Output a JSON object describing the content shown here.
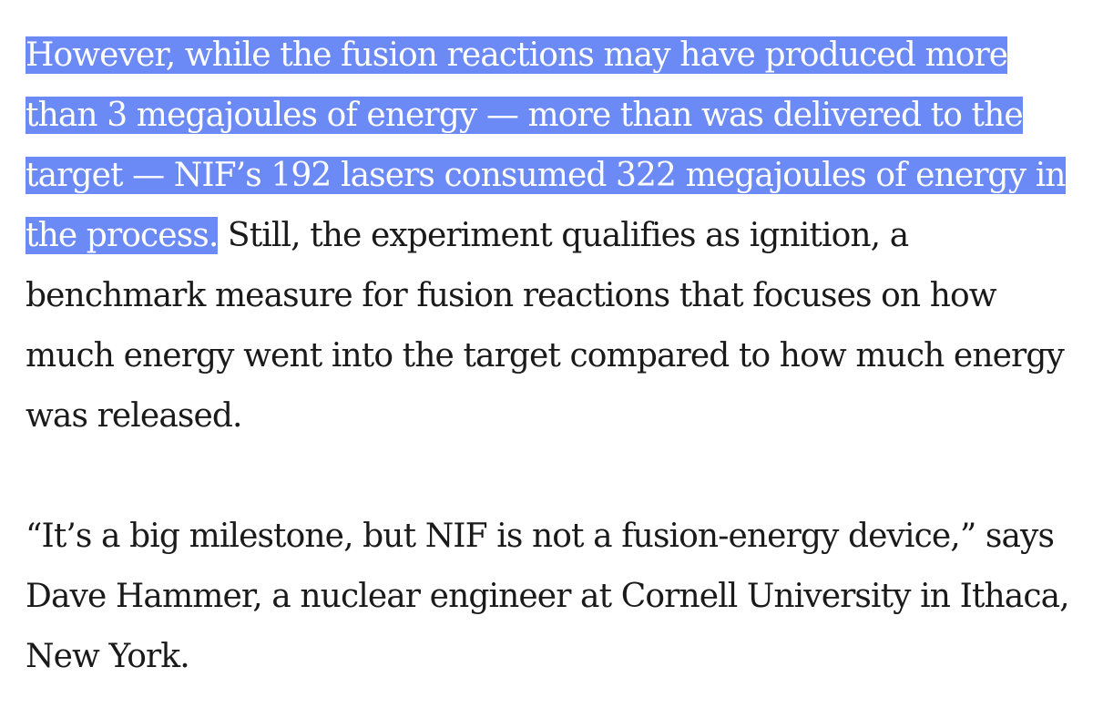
{
  "article": {
    "paragraph_1": {
      "highlighted": "However, while the fusion reactions may have produced more than 3 megajoules of energy — more than was delivered to the target — NIF’s 192 lasers consumed 322 megajoules of energy in the process.",
      "rest": " Still, the experiment qualifies as ignition, a benchmark measure for fusion reactions that focuses on how much energy went into the target compared to how much energy was released."
    },
    "paragraph_2": {
      "text": "“It’s a big milestone, but NIF is not a fusion-energy device,” says Dave Hammer, a nuclear engineer at Cornell University in Ithaca, New York."
    }
  },
  "colors": {
    "selection_highlight": "#6b8af5",
    "text": "#1a1a1a",
    "background": "#ffffff"
  }
}
